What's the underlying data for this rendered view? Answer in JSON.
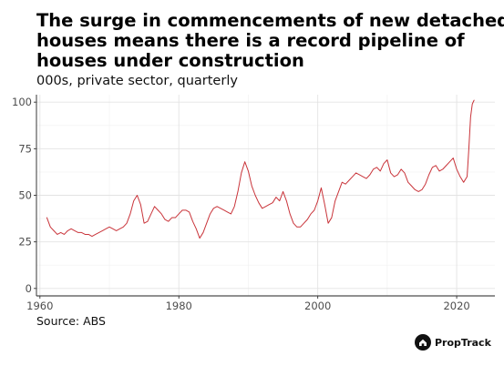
{
  "chart_data": {
    "type": "line",
    "title_lines": [
      "The surge in commencements of new detached",
      "houses means there is a record pipeline of",
      "houses under construction"
    ],
    "subtitle": "000s, private sector, quarterly",
    "source": "Source: ABS",
    "xlabel": "",
    "ylabel": "",
    "xlim": [
      1959.5,
      2025.5
    ],
    "ylim": [
      -4,
      104
    ],
    "x_ticks": [
      1960,
      1980,
      2000,
      2020
    ],
    "y_ticks": [
      0,
      25,
      50,
      75,
      100
    ],
    "grid": true,
    "legend": "none",
    "line_color": "#c9343a",
    "series": [
      {
        "values": [
          [
            1961.0,
            38
          ],
          [
            1961.5,
            33
          ],
          [
            1962.0,
            31
          ],
          [
            1962.5,
            29
          ],
          [
            1963.0,
            30
          ],
          [
            1963.5,
            29
          ],
          [
            1964.0,
            31
          ],
          [
            1964.5,
            32
          ],
          [
            1965.0,
            31
          ],
          [
            1965.5,
            30
          ],
          [
            1966.0,
            30
          ],
          [
            1966.5,
            29
          ],
          [
            1967.0,
            29
          ],
          [
            1967.5,
            28
          ],
          [
            1968.0,
            29
          ],
          [
            1968.5,
            30
          ],
          [
            1969.0,
            31
          ],
          [
            1969.5,
            32
          ],
          [
            1970.0,
            33
          ],
          [
            1970.5,
            32
          ],
          [
            1971.0,
            31
          ],
          [
            1971.5,
            32
          ],
          [
            1972.0,
            33
          ],
          [
            1972.5,
            35
          ],
          [
            1973.0,
            40
          ],
          [
            1973.5,
            47
          ],
          [
            1974.0,
            50
          ],
          [
            1974.5,
            45
          ],
          [
            1975.0,
            35
          ],
          [
            1975.5,
            36
          ],
          [
            1976.0,
            40
          ],
          [
            1976.5,
            44
          ],
          [
            1977.0,
            42
          ],
          [
            1977.5,
            40
          ],
          [
            1978.0,
            37
          ],
          [
            1978.5,
            36
          ],
          [
            1979.0,
            38
          ],
          [
            1979.5,
            38
          ],
          [
            1980.0,
            40
          ],
          [
            1980.5,
            42
          ],
          [
            1981.0,
            42
          ],
          [
            1981.5,
            41
          ],
          [
            1982.0,
            36
          ],
          [
            1982.5,
            32
          ],
          [
            1983.0,
            27
          ],
          [
            1983.5,
            30
          ],
          [
            1984.0,
            35
          ],
          [
            1984.5,
            40
          ],
          [
            1985.0,
            43
          ],
          [
            1985.5,
            44
          ],
          [
            1986.0,
            43
          ],
          [
            1986.5,
            42
          ],
          [
            1987.0,
            41
          ],
          [
            1987.5,
            40
          ],
          [
            1988.0,
            44
          ],
          [
            1988.5,
            52
          ],
          [
            1989.0,
            62
          ],
          [
            1989.5,
            68
          ],
          [
            1990.0,
            63
          ],
          [
            1990.5,
            55
          ],
          [
            1991.0,
            50
          ],
          [
            1991.5,
            46
          ],
          [
            1992.0,
            43
          ],
          [
            1992.5,
            44
          ],
          [
            1993.0,
            45
          ],
          [
            1993.5,
            46
          ],
          [
            1994.0,
            49
          ],
          [
            1994.5,
            47
          ],
          [
            1995.0,
            52
          ],
          [
            1995.5,
            47
          ],
          [
            1996.0,
            40
          ],
          [
            1996.5,
            35
          ],
          [
            1997.0,
            33
          ],
          [
            1997.5,
            33
          ],
          [
            1998.0,
            35
          ],
          [
            1998.5,
            37
          ],
          [
            1999.0,
            40
          ],
          [
            1999.5,
            42
          ],
          [
            2000.0,
            47
          ],
          [
            2000.5,
            54
          ],
          [
            2001.0,
            45
          ],
          [
            2001.5,
            35
          ],
          [
            2002.0,
            38
          ],
          [
            2002.5,
            47
          ],
          [
            2003.0,
            52
          ],
          [
            2003.5,
            57
          ],
          [
            2004.0,
            56
          ],
          [
            2004.5,
            58
          ],
          [
            2005.0,
            60
          ],
          [
            2005.5,
            62
          ],
          [
            2006.0,
            61
          ],
          [
            2006.5,
            60
          ],
          [
            2007.0,
            59
          ],
          [
            2007.5,
            61
          ],
          [
            2008.0,
            64
          ],
          [
            2008.5,
            65
          ],
          [
            2009.0,
            63
          ],
          [
            2009.5,
            67
          ],
          [
            2010.0,
            69
          ],
          [
            2010.5,
            62
          ],
          [
            2011.0,
            60
          ],
          [
            2011.5,
            61
          ],
          [
            2012.0,
            64
          ],
          [
            2012.5,
            62
          ],
          [
            2013.0,
            57
          ],
          [
            2013.5,
            55
          ],
          [
            2014.0,
            53
          ],
          [
            2014.5,
            52
          ],
          [
            2015.0,
            53
          ],
          [
            2015.5,
            56
          ],
          [
            2016.0,
            61
          ],
          [
            2016.5,
            65
          ],
          [
            2017.0,
            66
          ],
          [
            2017.5,
            63
          ],
          [
            2018.0,
            64
          ],
          [
            2018.5,
            66
          ],
          [
            2019.0,
            68
          ],
          [
            2019.5,
            70
          ],
          [
            2020.0,
            64
          ],
          [
            2020.5,
            60
          ],
          [
            2021.0,
            57
          ],
          [
            2021.5,
            60
          ],
          [
            2021.75,
            75
          ],
          [
            2022.0,
            92
          ],
          [
            2022.25,
            99
          ],
          [
            2022.5,
            101
          ]
        ]
      }
    ]
  },
  "branding": {
    "logo_text": "PropTrack",
    "logo_icon": "house-icon"
  }
}
